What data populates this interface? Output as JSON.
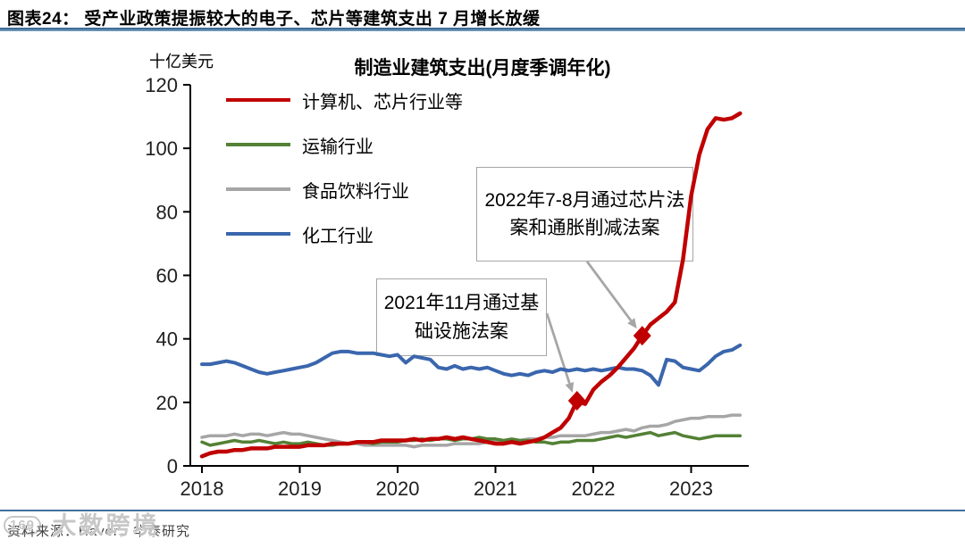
{
  "header": {
    "title": "图表24：  受产业政策提振较大的电子、芯片等建筑支出 7 月增长放缓"
  },
  "footer": {
    "source": "资料来源：Haver，华泰研究"
  },
  "watermark": {
    "logo": "169",
    "text": "大数跨境"
  },
  "chart_data": {
    "type": "line",
    "title": "制造业建筑支出(月度季调年化)",
    "unit_label": "十亿美元",
    "x_start_month": "2018-01",
    "x_end_month": "2023-07",
    "xticks": [
      2018,
      2019,
      2020,
      2021,
      2022,
      2023
    ],
    "yticks": [
      0,
      20,
      40,
      60,
      80,
      100,
      120
    ],
    "ylim": [
      0,
      120
    ],
    "grid": false,
    "legend_position": "top-left",
    "series": [
      {
        "name": "计算机、芯片行业等",
        "color": "#C00000",
        "values": [
          3,
          4,
          4.5,
          4.5,
          5,
          5,
          5.5,
          5.5,
          5.5,
          6,
          6,
          6,
          6,
          6.5,
          6.5,
          6.5,
          7,
          7,
          7,
          7.5,
          7.5,
          7.5,
          8,
          8,
          8,
          8,
          8.5,
          8,
          8.5,
          8.5,
          9,
          8.5,
          9,
          8.5,
          8,
          7.5,
          7,
          7,
          7.5,
          7,
          7.5,
          8,
          9,
          10.5,
          12,
          15,
          20.5,
          19.5,
          24,
          26.5,
          28.5,
          31,
          34,
          37,
          41,
          44.5,
          46.5,
          48.5,
          51.5,
          65,
          85,
          98,
          106,
          109.5,
          109,
          109.5,
          111
        ]
      },
      {
        "name": "运输行业",
        "color": "#538135",
        "values": [
          7.5,
          6.5,
          7,
          7.5,
          8,
          7.5,
          7.5,
          8,
          7.5,
          7,
          7.5,
          7,
          7,
          7.5,
          7,
          6.5,
          6.5,
          7,
          7,
          7.5,
          7.5,
          7,
          7.5,
          7.5,
          7.5,
          8,
          8,
          8.5,
          8,
          8.5,
          8.5,
          8,
          8.5,
          8.5,
          9,
          8.5,
          8.5,
          8,
          8.5,
          8,
          8,
          7.5,
          7.5,
          7,
          7.5,
          7.5,
          8,
          8,
          8,
          8.5,
          9,
          9.5,
          9,
          9.5,
          10,
          10.5,
          9.5,
          10,
          10.5,
          9.5,
          9,
          8.5,
          9,
          9.5,
          9.5,
          9.5,
          9.5
        ]
      },
      {
        "name": "食品饮料行业",
        "color": "#A6A6A6",
        "values": [
          9,
          9.5,
          9.5,
          9.5,
          10,
          9.5,
          10,
          10,
          9.5,
          10,
          10.5,
          10,
          10,
          9.5,
          9,
          8.5,
          8,
          7.5,
          7,
          7,
          6.5,
          6.5,
          6.5,
          6.5,
          6.5,
          6.5,
          6,
          6.5,
          6.5,
          6.5,
          6.5,
          7,
          7,
          7,
          7,
          7.5,
          7.5,
          7.5,
          8,
          8,
          8.5,
          8.5,
          9,
          9,
          9.5,
          9.5,
          9.5,
          9.5,
          10,
          10.5,
          10.5,
          11,
          11.5,
          11,
          12,
          12.5,
          12.5,
          13,
          14,
          14.5,
          15,
          15,
          15.5,
          15.5,
          15.5,
          16,
          16
        ]
      },
      {
        "name": "化工行业",
        "color": "#3A66AD",
        "values": [
          32,
          32,
          32.5,
          33,
          32.5,
          31.5,
          30.5,
          29.5,
          29,
          29.5,
          30,
          30.5,
          31,
          31.5,
          32.5,
          34,
          35.5,
          36,
          36,
          35.5,
          35.5,
          35.5,
          35,
          34.5,
          35,
          32.5,
          34.5,
          34,
          33.5,
          31,
          30.5,
          31.5,
          30.5,
          31,
          30.5,
          31,
          30,
          29,
          28.5,
          29,
          28.5,
          29.5,
          30,
          29.5,
          30.5,
          30,
          30.5,
          30,
          30.5,
          30,
          30.5,
          31,
          30.5,
          30.5,
          30,
          28.5,
          25.5,
          33.5,
          33,
          31,
          30.5,
          30,
          32,
          34.5,
          36,
          36.5,
          38
        ]
      }
    ],
    "markers": [
      {
        "series_index": 0,
        "month": "2021-11",
        "month_index": 46
      },
      {
        "series_index": 0,
        "month": "2022-07",
        "month_index": 54
      }
    ],
    "annotations": [
      {
        "text": "2022年7-8月通过芯片法案和通胀削减法案"
      },
      {
        "text": "2021年11月通过基础设施法案"
      }
    ]
  }
}
